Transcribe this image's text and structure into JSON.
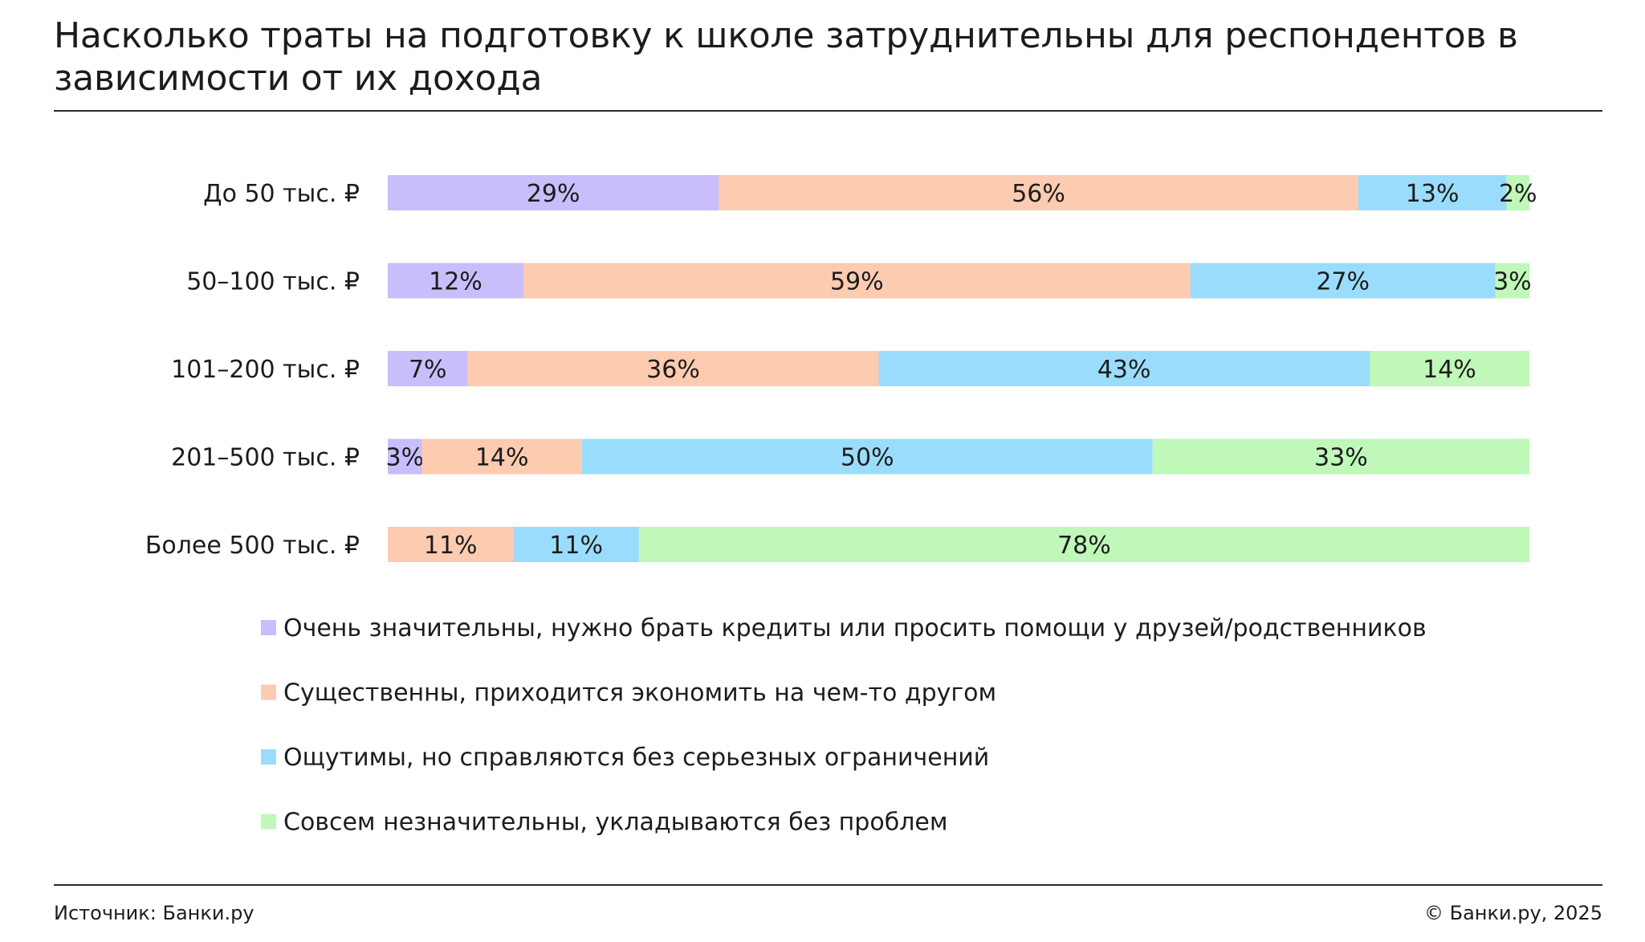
{
  "title": "Насколько траты на подготовку к школе затруднительны для респондентов в зависимости от их дохода",
  "footer": {
    "source": "Источник: Банки.ру",
    "copyright": "© Банки.ру, 2025"
  },
  "chart_data": {
    "type": "bar",
    "orientation": "horizontal",
    "stacked": true,
    "categories": [
      "До 50 тыс. ₽",
      "50–100 тыс. ₽",
      "101–200 тыс. ₽",
      "201–500 тыс. ₽",
      "Более 500 тыс. ₽"
    ],
    "series": [
      {
        "name": "Очень значительны, нужно брать кредиты или просить помощи у друзей/родственников",
        "color": "#c9bdfb",
        "values": [
          29,
          12,
          7,
          3,
          0
        ]
      },
      {
        "name": "Существенны, приходится экономить на чем-то другом",
        "color": "#fdcbb0",
        "values": [
          56,
          59,
          36,
          14,
          11
        ]
      },
      {
        "name": "Ощутимы, но справляются без серьезных ограничений",
        "color": "#9adcfb",
        "values": [
          13,
          27,
          43,
          50,
          11
        ]
      },
      {
        "name": "Совсем незначительны, укладываются без проблем",
        "color": "#bff8b8",
        "values": [
          2,
          3,
          14,
          33,
          78
        ]
      }
    ],
    "value_suffix": "%",
    "legend_position": "bottom",
    "grid": false
  }
}
